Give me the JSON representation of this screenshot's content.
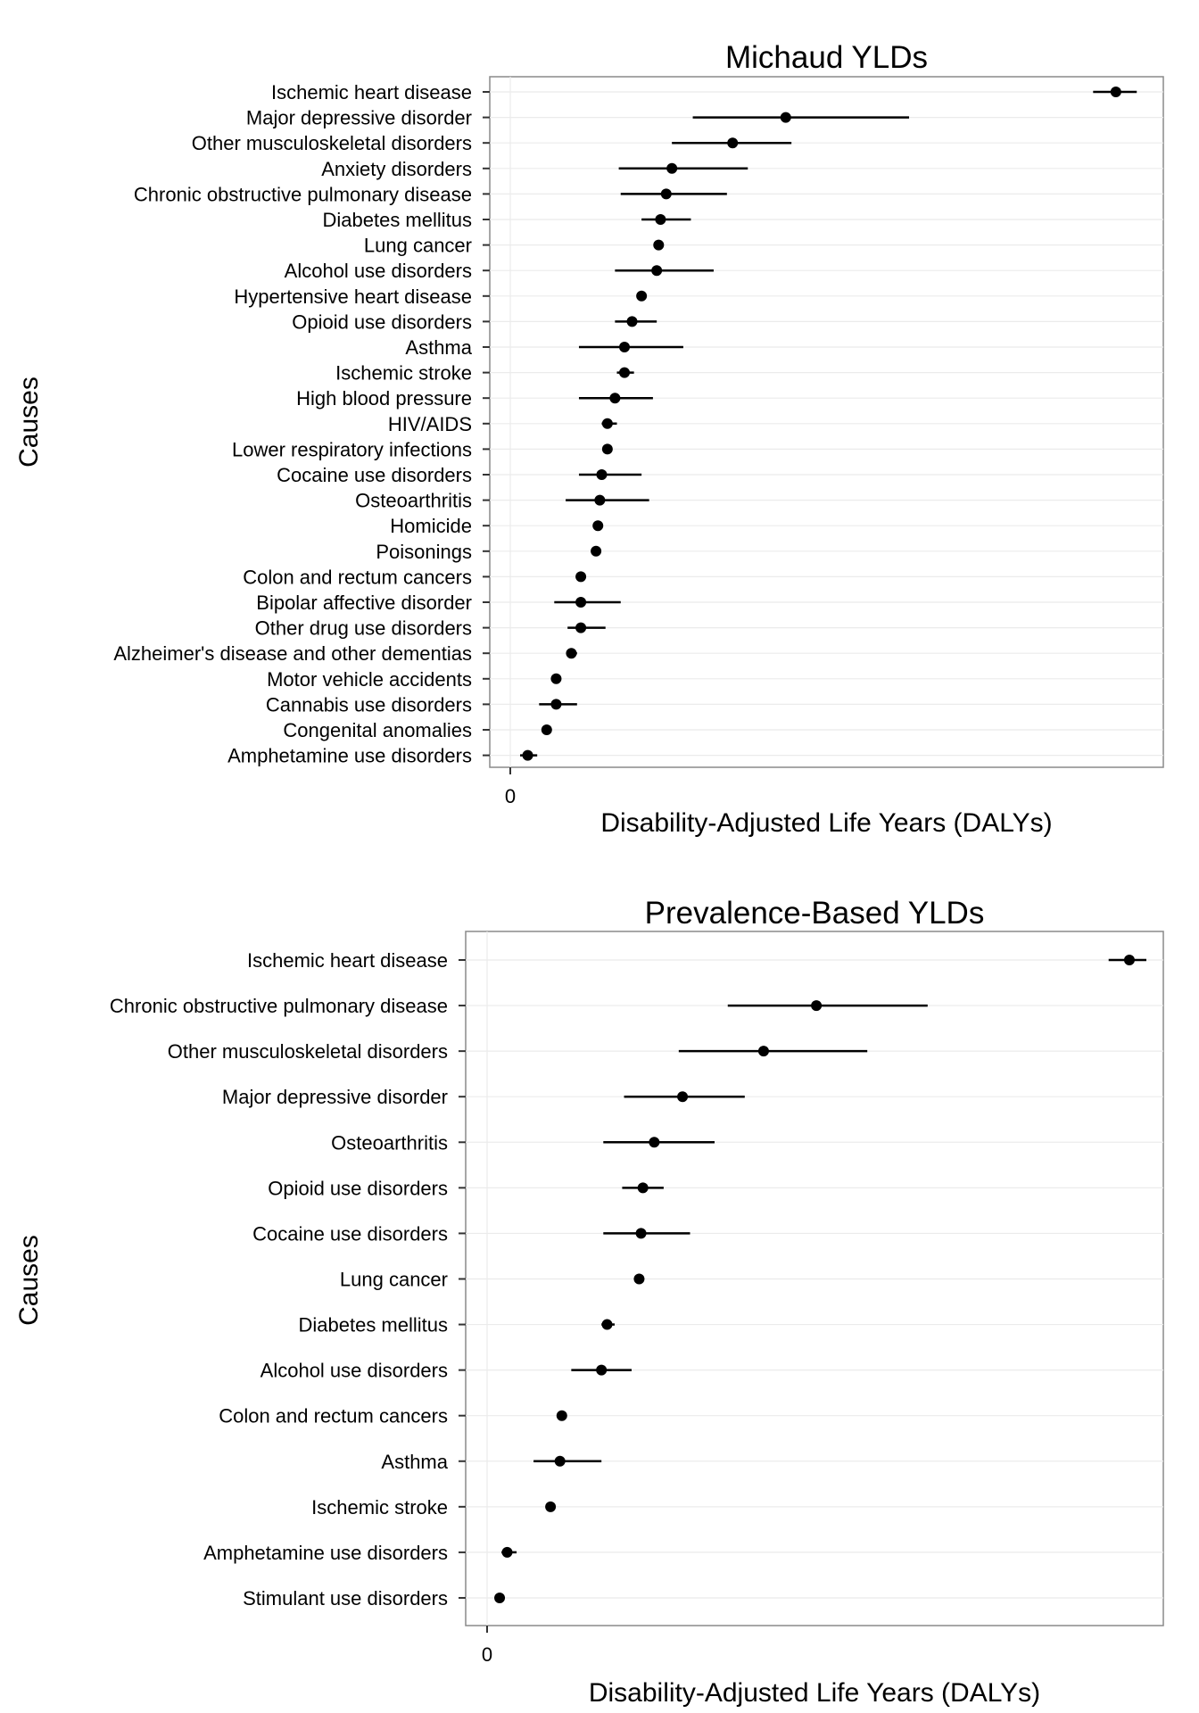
{
  "chart_data": [
    {
      "type": "dot-interval",
      "title": "Michaud YLDs",
      "xlabel": "Disability-Adjusted Life Years (DALYs)",
      "ylabel": "Causes",
      "x_ticks": [
        "0"
      ],
      "xlim": [
        -1.2,
        34.3
      ],
      "grid": true,
      "categories": [
        "Ischemic heart disease",
        "Major depressive disorder",
        "Other musculoskeletal disorders",
        "Anxiety disorders",
        "Chronic obstructive pulmonary disease",
        "Diabetes mellitus",
        "Lung cancer",
        "Alcohol use disorders",
        "Hypertensive heart disease",
        "Opioid use disorders",
        "Asthma",
        "Ischemic stroke",
        "High blood pressure",
        "HIV/AIDS",
        "Lower respiratory infections",
        "Cocaine use disorders",
        "Osteoarthritis",
        "Homicide",
        "Poisonings",
        "Colon and rectum cancers",
        "Bipolar affective disorder",
        "Other drug use disorders",
        "Alzheimer's disease and other dementias",
        "Motor vehicle accidents",
        "Cannabis use disorders",
        "Congenital anomalies",
        "Amphetamine use disorders"
      ],
      "values": [
        31.8,
        14.4,
        11.6,
        8.4,
        8.1,
        7.8,
        7.7,
        7.6,
        6.8,
        6.3,
        5.9,
        5.9,
        5.4,
        5.0,
        5.0,
        4.7,
        4.6,
        4.5,
        4.4,
        3.6,
        3.6,
        3.6,
        3.1,
        2.3,
        2.3,
        1.8,
        0.8
      ],
      "lower": [
        30.6,
        9.5,
        8.4,
        5.6,
        5.7,
        6.8,
        7.7,
        5.4,
        6.8,
        5.4,
        3.5,
        5.5,
        3.5,
        4.7,
        5.0,
        3.5,
        2.8,
        4.5,
        4.4,
        3.6,
        2.2,
        2.9,
        2.9,
        2.3,
        1.4,
        1.8,
        0.4
      ],
      "upper": [
        32.9,
        20.9,
        14.7,
        12.4,
        11.3,
        9.4,
        7.7,
        10.6,
        6.8,
        7.6,
        9.0,
        6.4,
        7.4,
        5.5,
        5.0,
        6.8,
        7.2,
        4.5,
        4.4,
        3.6,
        5.7,
        4.9,
        3.4,
        2.3,
        3.4,
        1.8,
        1.3
      ]
    },
    {
      "type": "dot-interval",
      "title": "Prevalence-Based YLDs",
      "xlabel": "Disability-Adjusted Life Years (DALYs)",
      "ylabel": "Causes",
      "x_ticks": [
        "0"
      ],
      "xlim": [
        -1.0,
        36.0
      ],
      "grid": true,
      "categories": [
        "Ischemic heart disease",
        "Chronic obstructive pulmonary disease",
        "Other musculoskeletal disorders",
        "Major depressive disorder",
        "Osteoarthritis",
        "Opioid use disorders",
        "Cocaine use disorders",
        "Lung cancer",
        "Diabetes mellitus",
        "Alcohol use disorders",
        "Colon and rectum cancers",
        "Asthma",
        "Ischemic stroke",
        "Amphetamine use disorders",
        "Stimulant use disorders"
      ],
      "values": [
        34.2,
        17.6,
        14.8,
        10.5,
        9.0,
        8.4,
        8.3,
        8.2,
        6.5,
        6.2,
        4.1,
        4.0,
        3.5,
        1.2,
        0.8
      ],
      "lower": [
        33.1,
        12.9,
        10.3,
        7.4,
        6.3,
        7.3,
        6.3,
        8.0,
        6.2,
        4.6,
        4.0,
        2.6,
        3.5,
        0.9,
        0.6
      ],
      "upper": [
        35.1,
        23.5,
        20.3,
        13.8,
        12.2,
        9.5,
        10.9,
        8.4,
        6.9,
        7.8,
        4.3,
        6.2,
        3.5,
        1.7,
        1.0
      ]
    }
  ]
}
